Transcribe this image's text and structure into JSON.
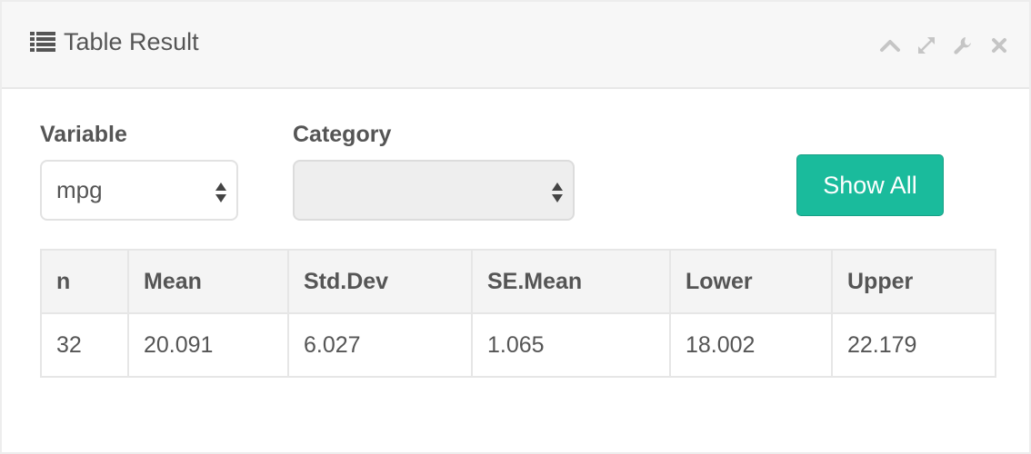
{
  "panel": {
    "title": "Table Result",
    "tools": [
      "collapse-icon",
      "expand-icon",
      "wrench-icon",
      "close-icon"
    ]
  },
  "form": {
    "variable_label": "Variable",
    "variable_value": "mpg",
    "category_label": "Category",
    "category_value": "",
    "show_all_label": "Show All"
  },
  "table": {
    "headers": [
      "n",
      "Mean",
      "Std.Dev",
      "SE.Mean",
      "Lower",
      "Upper"
    ],
    "rows": [
      [
        "32",
        "20.091",
        "6.027",
        "1.065",
        "18.002",
        "22.179"
      ]
    ]
  },
  "colors": {
    "accent": "#1abb9c",
    "text": "#555555",
    "header_bg": "#f7f7f7"
  }
}
